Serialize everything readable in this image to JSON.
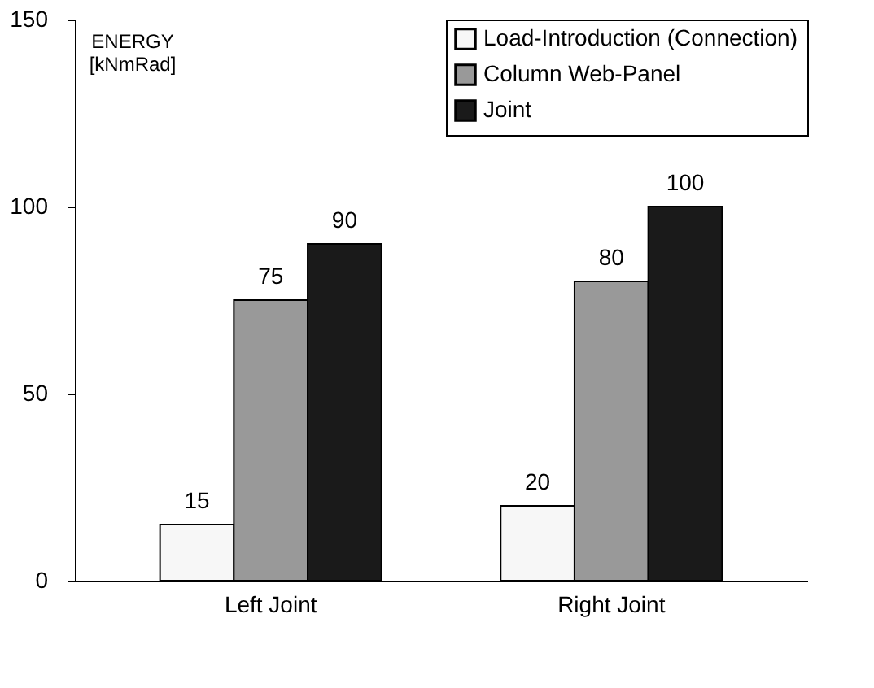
{
  "chart_data": {
    "type": "bar",
    "ylabel": "ENERGY [kNmRad]",
    "categories": [
      "Left Joint",
      "Right Joint"
    ],
    "series": [
      {
        "name": "Load-Introduction (Connection)",
        "color": "#f7f7f7",
        "values": [
          15,
          20
        ]
      },
      {
        "name": "Column Web-Panel",
        "color": "#999999",
        "values": [
          75,
          80
        ]
      },
      {
        "name": "Joint",
        "color": "#1a1a1a",
        "values": [
          90,
          100
        ]
      }
    ],
    "ylim": [
      0,
      150
    ],
    "yticks": [
      0,
      50,
      100,
      150
    ],
    "grid": false,
    "legend": "top right",
    "data_labels": true
  }
}
